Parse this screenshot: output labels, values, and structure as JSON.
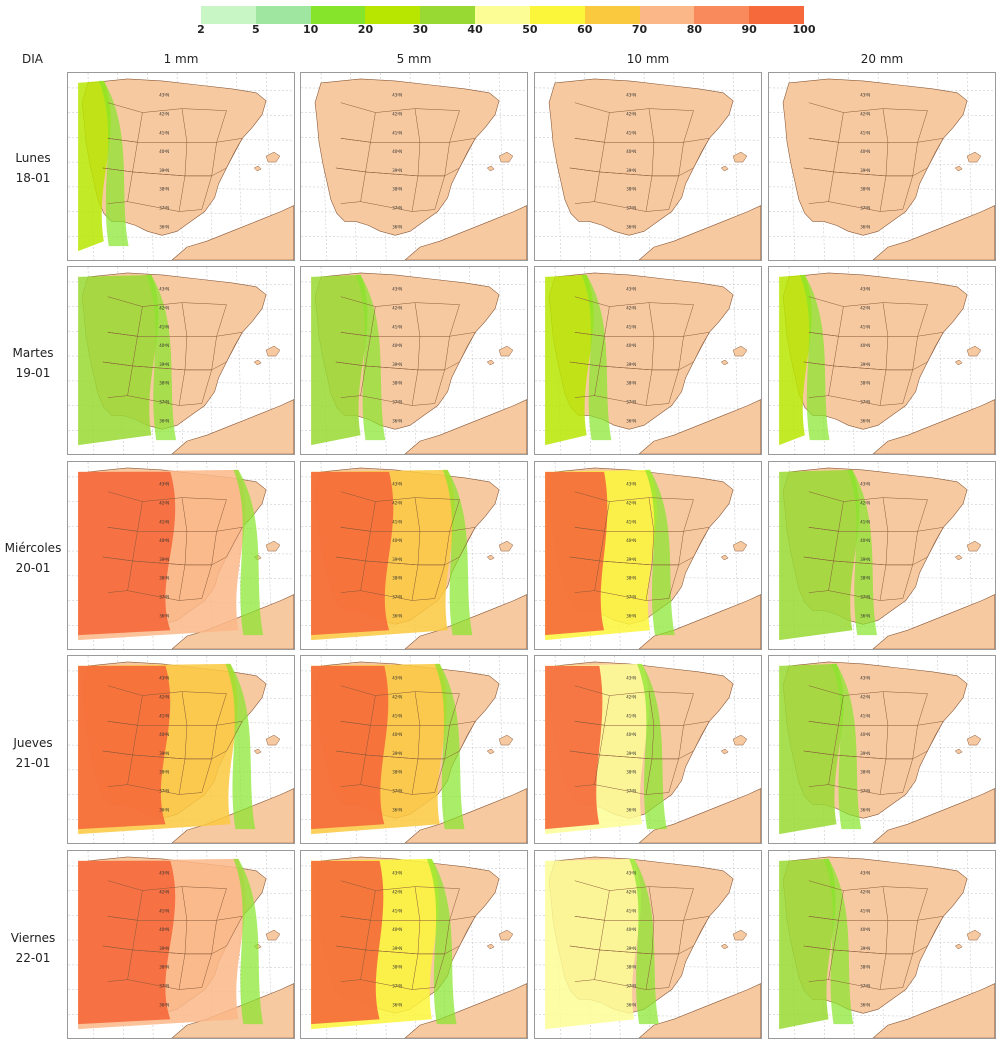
{
  "legend": {
    "colors": [
      "#c8f7c5",
      "#9fe7a0",
      "#86e52a",
      "#b8e600",
      "#99d933",
      "#fdfd95",
      "#fbf63a",
      "#fac93e",
      "#fbb787",
      "#f98a5c",
      "#f5693b"
    ],
    "labels": [
      "2",
      "5",
      "10",
      "20",
      "30",
      "40",
      "50",
      "60",
      "70",
      "80",
      "90",
      "100"
    ]
  },
  "header": {
    "dia": "DIA",
    "columns": [
      "1 mm",
      "5 mm",
      "10 mm",
      "20 mm"
    ]
  },
  "rows": [
    {
      "day": "Lunes",
      "date": "18-01"
    },
    {
      "day": "Martes",
      "date": "19-01"
    },
    {
      "day": "Miércoles",
      "date": "20-01"
    },
    {
      "day": "Jueves",
      "date": "21-01"
    },
    {
      "day": "Viernes",
      "date": "22-01"
    }
  ],
  "map_colors": {
    "land": "#f7c9a0",
    "sea": "#ffffff",
    "province_border": "#8a5a3a",
    "grid": "#c8c8c8"
  },
  "central_labels": [
    "43ºN",
    "42ºN",
    "41ºN",
    "40ºN",
    "39ºN",
    "38ºN",
    "37ºN",
    "36ºN"
  ],
  "precip_levels": [
    [
      0.1,
      0.0,
      0.0,
      0.0
    ],
    [
      0.4,
      0.25,
      0.2,
      0.1
    ],
    [
      0.95,
      0.8,
      0.6,
      0.4
    ],
    [
      0.9,
      0.75,
      0.55,
      0.3
    ],
    [
      0.95,
      0.7,
      0.5,
      0.25
    ]
  ]
}
